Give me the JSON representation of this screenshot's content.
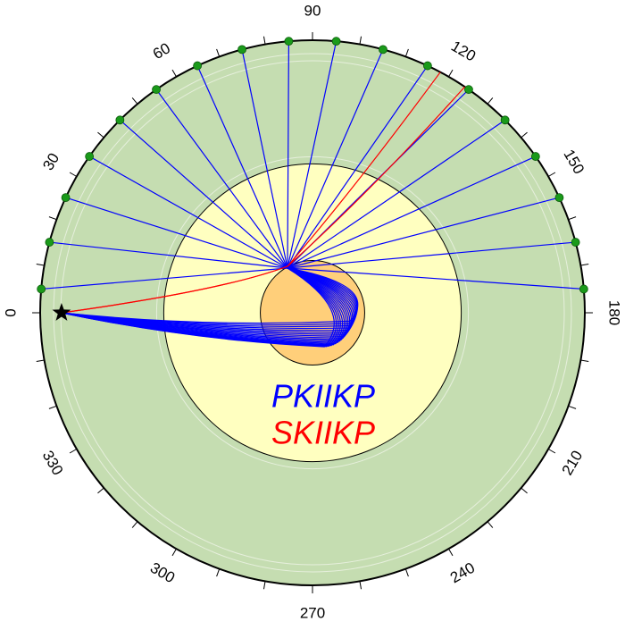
{
  "chart_data": {
    "type": "raypath",
    "earth_radius_km": 6371,
    "outer_core_radius_km": 3480,
    "inner_core_radius_km": 1221,
    "source_depth_km": 500,
    "angle_ticks": [
      0,
      30,
      60,
      90,
      120,
      150,
      180,
      210,
      240,
      270,
      300,
      330
    ],
    "minor_angle_ticks": [
      10,
      20,
      40,
      50,
      70,
      80,
      100,
      110,
      130,
      140,
      160,
      170,
      190,
      200,
      220,
      230,
      250,
      260,
      280,
      290,
      310,
      320,
      340,
      350
    ],
    "mantle_color": "#c5ddb1",
    "outer_core_color": "#ffffc0",
    "inner_core_color": "#ffcf7a",
    "receiver_color": "#1a9a1a",
    "series": [
      {
        "name": "PKIIKP",
        "color": "#0000ff",
        "distances": [
          5,
          15,
          25,
          35,
          45,
          55,
          65,
          75,
          85,
          95,
          105,
          115,
          125,
          135,
          145,
          155,
          165,
          175
        ]
      },
      {
        "name": "SKIIKP",
        "color": "#ff0000",
        "distances": [
          118,
          124
        ]
      }
    ]
  }
}
